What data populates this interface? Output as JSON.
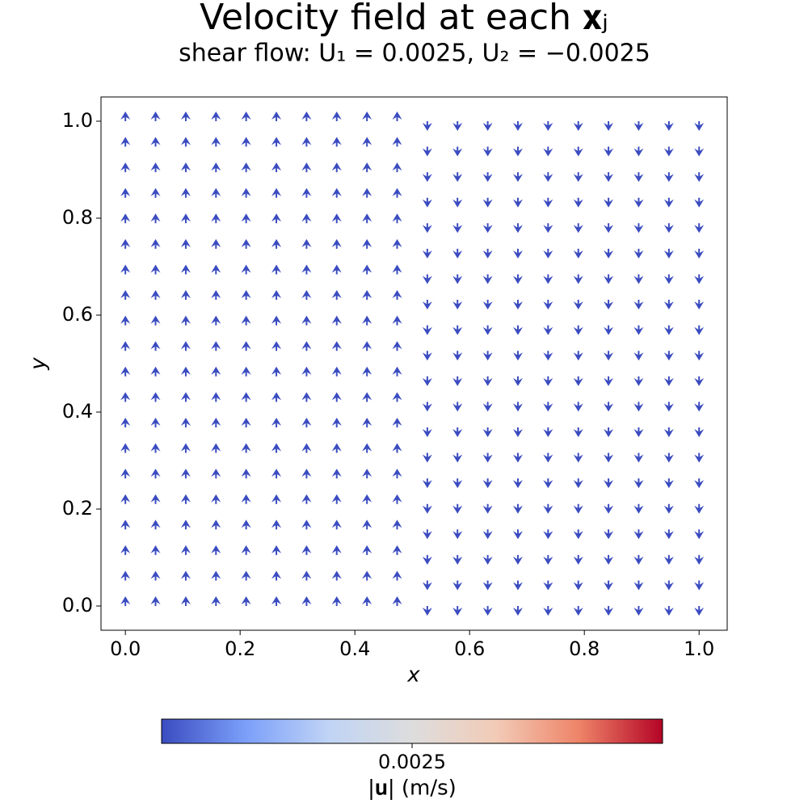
{
  "chart_data": {
    "type": "quiver",
    "title": "Velocity field at each 𝐱ⱼ",
    "subtitle": "shear flow: U₁ = 0.0025, U₂ = −0.0025",
    "xlabel": "x",
    "ylabel": "y",
    "x": [
      0,
      0.0526,
      0.1053,
      0.1579,
      0.2105,
      0.2632,
      0.3158,
      0.3684,
      0.4211,
      0.4737,
      0.5263,
      0.5789,
      0.6316,
      0.6842,
      0.7368,
      0.7895,
      0.8421,
      0.8947,
      0.9474,
      1
    ],
    "y": [
      0,
      0.0526,
      0.1053,
      0.1579,
      0.2105,
      0.2632,
      0.3158,
      0.3684,
      0.4211,
      0.4737,
      0.5263,
      0.5789,
      0.6316,
      0.6842,
      0.7368,
      0.7895,
      0.8421,
      0.8947,
      0.9474,
      1
    ],
    "v": [
      0.0025,
      0.0025,
      0.0025,
      0.0025,
      0.0025,
      0.0025,
      0.0025,
      0.0025,
      0.0025,
      0.0025,
      -0.0025,
      -0.0025,
      -0.0025,
      -0.0025,
      -0.0025,
      -0.0025,
      -0.0025,
      -0.0025,
      -0.0025,
      -0.0025
    ],
    "color": "#3b4cc0",
    "xlim": [
      -0.0425,
      1.049
    ],
    "ylim": [
      -0.05,
      1.05
    ],
    "xticks": [
      {
        "value": 0,
        "label": "0.0"
      },
      {
        "value": 0.2,
        "label": "0.2"
      },
      {
        "value": 0.4,
        "label": "0.4"
      },
      {
        "value": 0.6,
        "label": "0.6"
      },
      {
        "value": 0.8,
        "label": "0.8"
      },
      {
        "value": 1,
        "label": "1.0"
      }
    ],
    "yticks": [
      {
        "value": 0,
        "label": "0.0"
      },
      {
        "value": 0.2,
        "label": "0.2"
      },
      {
        "value": 0.4,
        "label": "0.4"
      },
      {
        "value": 0.6,
        "label": "0.6"
      },
      {
        "value": 0.8,
        "label": "0.8"
      },
      {
        "value": 1,
        "label": "1.0"
      }
    ],
    "colorbar": {
      "label": "|𝐮| (m/s)",
      "lim": [
        0.00249,
        0.00251
      ],
      "ticks": [
        0.0025
      ],
      "colormap": [
        "#3b4cc0",
        "#7b9ff9",
        "#c0d4f5",
        "#dddddd",
        "#f2cbb7",
        "#ee8468",
        "#b40426"
      ]
    }
  }
}
